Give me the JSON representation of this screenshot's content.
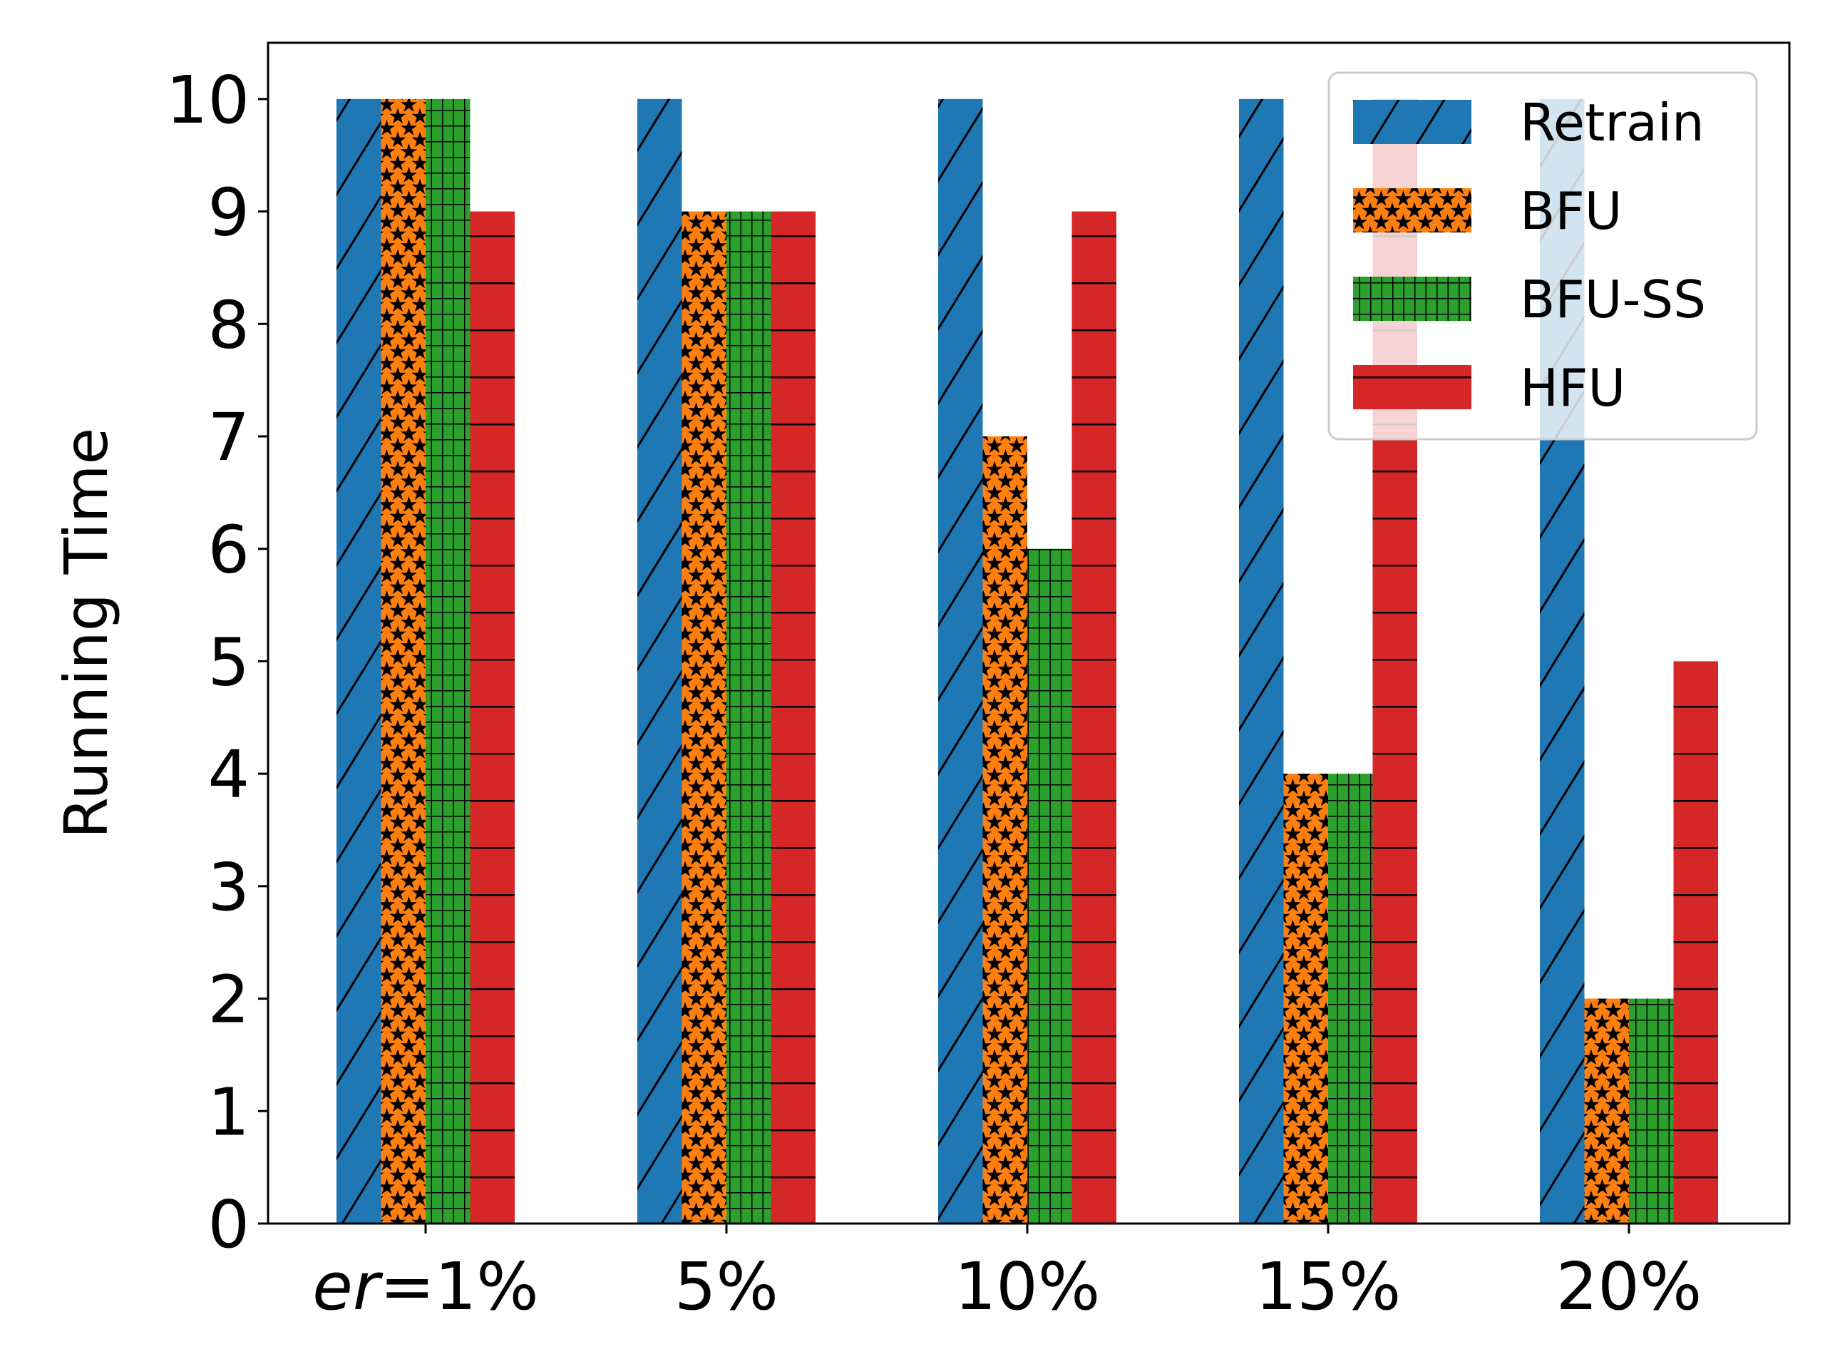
{
  "chart_data": {
    "type": "bar",
    "title": "",
    "xlabel": "",
    "ylabel": "Running Time",
    "categories": [
      {
        "prefix": "er",
        "suffix": "=1%"
      },
      {
        "prefix": "",
        "suffix": "5%"
      },
      {
        "prefix": "",
        "suffix": "10%"
      },
      {
        "prefix": "",
        "suffix": "15%"
      },
      {
        "prefix": "",
        "suffix": "20%"
      }
    ],
    "ylim": [
      0,
      10.5
    ],
    "yticks": [
      "0",
      "1",
      "2",
      "3",
      "4",
      "5",
      "6",
      "7",
      "8",
      "9",
      "10"
    ],
    "grid": false,
    "legend": "top-right",
    "series": [
      {
        "name": "Retrain",
        "color": "#1f77b4",
        "hatch": "diagonal",
        "values": [
          10,
          10,
          10,
          10,
          10
        ]
      },
      {
        "name": "BFU",
        "color": "#ff7f0e",
        "hatch": "stars",
        "values": [
          10,
          9,
          7,
          4,
          2
        ]
      },
      {
        "name": "BFU-SS",
        "color": "#2ca02c",
        "hatch": "grid",
        "values": [
          10,
          9,
          6,
          4,
          2
        ]
      },
      {
        "name": "HFU",
        "color": "#d62728",
        "hatch": "horizontal",
        "values": [
          9,
          9,
          9,
          10,
          5
        ]
      }
    ]
  }
}
